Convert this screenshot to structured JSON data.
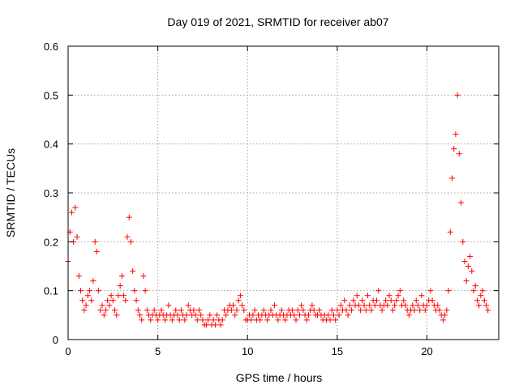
{
  "chart_data": {
    "type": "scatter",
    "title": "Day 019 of 2021, SRMTID for receiver ab07",
    "xlabel": "GPS time / hours",
    "ylabel": "SRMTID / TECUs",
    "xlim": [
      0,
      24
    ],
    "ylim": [
      0,
      0.6
    ],
    "xticks": [
      0,
      5,
      10,
      15,
      20
    ],
    "yticks": [
      0,
      0.1,
      0.2,
      0.3,
      0.4,
      0.5,
      0.6
    ],
    "xtick_labels": [
      "0",
      "5",
      "10",
      "15",
      "20"
    ],
    "ytick_labels": [
      "0",
      "0.1",
      "0.2",
      "0.3",
      "0.4",
      "0.5",
      "0.6"
    ],
    "grid": true,
    "marker": "+",
    "color": "#ff0000",
    "series": [
      {
        "name": "SRMTID",
        "x_start": 0,
        "x_step": 0.1,
        "values": [
          0.16,
          0.22,
          0.26,
          0.2,
          0.27,
          0.21,
          0.13,
          0.1,
          0.08,
          0.06,
          0.07,
          0.09,
          0.1,
          0.08,
          0.12,
          0.2,
          0.18,
          0.1,
          0.06,
          0.07,
          0.05,
          0.06,
          0.08,
          0.07,
          0.09,
          0.08,
          0.06,
          0.05,
          0.09,
          0.11,
          0.13,
          0.09,
          0.08,
          0.21,
          0.25,
          0.2,
          0.14,
          0.1,
          0.08,
          0.06,
          0.05,
          0.04,
          0.13,
          0.1,
          0.06,
          0.05,
          0.04,
          0.05,
          0.06,
          0.05,
          0.04,
          0.05,
          0.06,
          0.05,
          0.04,
          0.05,
          0.07,
          0.05,
          0.04,
          0.05,
          0.06,
          0.05,
          0.04,
          0.06,
          0.05,
          0.04,
          0.05,
          0.07,
          0.06,
          0.05,
          0.06,
          0.05,
          0.04,
          0.06,
          0.05,
          0.04,
          0.03,
          0.03,
          0.04,
          0.05,
          0.03,
          0.04,
          0.03,
          0.05,
          0.04,
          0.03,
          0.04,
          0.06,
          0.05,
          0.06,
          0.07,
          0.06,
          0.07,
          0.05,
          0.06,
          0.08,
          0.09,
          0.07,
          0.06,
          0.04,
          0.04,
          0.05,
          0.04,
          0.05,
          0.06,
          0.04,
          0.05,
          0.04,
          0.05,
          0.06,
          0.05,
          0.04,
          0.05,
          0.06,
          0.05,
          0.07,
          0.05,
          0.04,
          0.05,
          0.06,
          0.05,
          0.04,
          0.05,
          0.06,
          0.05,
          0.06,
          0.05,
          0.04,
          0.06,
          0.05,
          0.07,
          0.06,
          0.05,
          0.04,
          0.05,
          0.06,
          0.07,
          0.06,
          0.05,
          0.05,
          0.06,
          0.05,
          0.04,
          0.05,
          0.04,
          0.05,
          0.04,
          0.06,
          0.05,
          0.04,
          0.06,
          0.05,
          0.07,
          0.06,
          0.08,
          0.06,
          0.05,
          0.07,
          0.06,
          0.08,
          0.07,
          0.09,
          0.07,
          0.06,
          0.08,
          0.07,
          0.06,
          0.09,
          0.07,
          0.06,
          0.08,
          0.07,
          0.08,
          0.1,
          0.07,
          0.06,
          0.07,
          0.08,
          0.07,
          0.09,
          0.08,
          0.06,
          0.07,
          0.08,
          0.09,
          0.1,
          0.07,
          0.08,
          0.07,
          0.06,
          0.05,
          0.06,
          0.07,
          0.06,
          0.08,
          0.07,
          0.06,
          0.09,
          0.07,
          0.06,
          0.07,
          0.08,
          0.1,
          0.08,
          0.07,
          0.06,
          0.07,
          0.06,
          0.05,
          0.04,
          0.05,
          0.06,
          0.1,
          0.22,
          0.33,
          0.39,
          0.42,
          0.5,
          0.38,
          0.28,
          0.2,
          0.16,
          0.12,
          0.15,
          0.17,
          0.14,
          0.1,
          0.11,
          0.08,
          0.07,
          0.09,
          0.1,
          0.08,
          0.07,
          0.06
        ]
      }
    ]
  }
}
